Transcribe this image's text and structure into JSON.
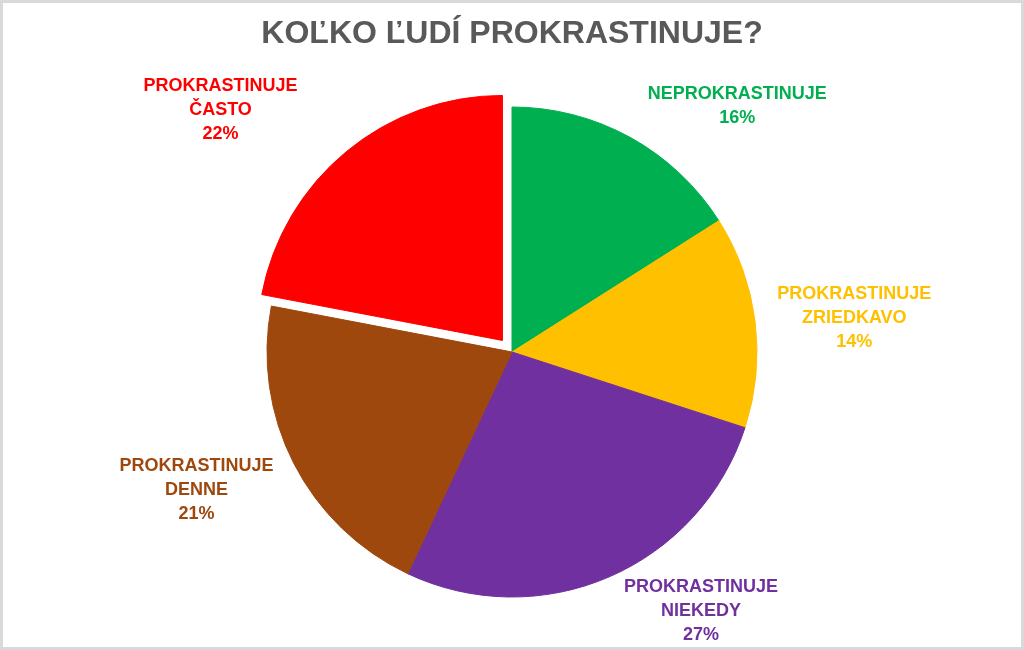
{
  "chart_data": {
    "type": "pie",
    "title": "KOĽKO ĽUDÍ PROKRASTINUJE?",
    "categories": [
      "NEPROKRASTINUJE",
      "PROKRASTINUJE ZRIEDKAVO",
      "PROKRASTINUJE NIEKEDY",
      "PROKRASTINUJE DENNE",
      "PROKRASTINUJE ČASTO"
    ],
    "values": [
      16,
      14,
      27,
      21,
      22
    ],
    "colors": [
      "#00b050",
      "#ffc000",
      "#7030a0",
      "#9e480e",
      "#ff0000"
    ],
    "value_labels": [
      "16%",
      "14%",
      "27%",
      "21%",
      "22%"
    ]
  }
}
